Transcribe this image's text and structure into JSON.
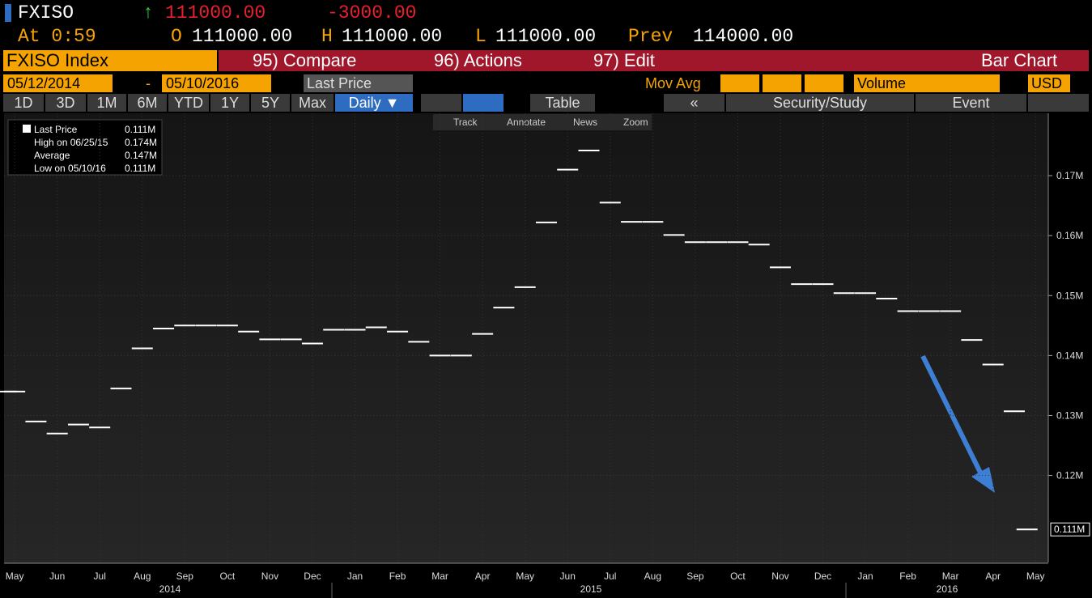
{
  "header": {
    "ticker": "FXISO",
    "arrow": "↑",
    "last": "111000.00",
    "change": "-3000.00",
    "time": "At 0:59",
    "open_label": "O",
    "open": "111000.00",
    "high_label": "H",
    "high": "111000.00",
    "low_label": "L",
    "low": "111000.00",
    "prev_label": "Prev",
    "prev": "114000.00"
  },
  "menu": {
    "security": "FXISO Index",
    "items": [
      "95) Compare",
      "96) Actions",
      "97) Edit"
    ],
    "view": "Bar Chart"
  },
  "settings": {
    "start": "05/12/2014",
    "dash": "-",
    "end": "05/10/2016",
    "field": "Last Price",
    "mov_avg": "Mov Avg",
    "volume": "Volume",
    "currency": "USD"
  },
  "periods": [
    "1D",
    "3D",
    "1M",
    "6M",
    "YTD",
    "1Y",
    "5Y",
    "Max"
  ],
  "frequency": "Daily ▼",
  "tools": {
    "table": "Table",
    "back": "«",
    "study": "Security/Study",
    "event": "Event"
  },
  "chart_tools": [
    "Track",
    "Annotate",
    "News",
    "Zoom"
  ],
  "legend": [
    {
      "label": "Last Price",
      "value": "0.111M"
    },
    {
      "label": "High on 06/25/15",
      "value": "0.174M"
    },
    {
      "label": "Average",
      "value": "0.147M"
    },
    {
      "label": "Low on 05/10/16",
      "value": "0.111M"
    }
  ],
  "chart_data": {
    "type": "bar",
    "color": "#ffffff",
    "grid": true,
    "x": [
      -0.2,
      0,
      0.5,
      1,
      1.5,
      2,
      2.5,
      3,
      3.5,
      4,
      4.5,
      5,
      5.5,
      6,
      6.5,
      7,
      7.5,
      8,
      8.5,
      9,
      9.5,
      10,
      10.5,
      11,
      11.5,
      12,
      12.5,
      13,
      13.5,
      14,
      14.5,
      15,
      15.5,
      16,
      16.5,
      17,
      17.5,
      18,
      18.5,
      19,
      19.5,
      20,
      20.5,
      21,
      21.5,
      22,
      22.5,
      23,
      23.5,
      23.8
    ],
    "values": [
      0.134,
      0.134,
      0.129,
      0.127,
      0.1285,
      0.128,
      0.1345,
      0.1412,
      0.1445,
      0.145,
      0.145,
      0.145,
      0.144,
      0.1427,
      0.1427,
      0.142,
      0.1443,
      0.1443,
      0.1447,
      0.144,
      0.1423,
      0.14,
      0.14,
      0.1436,
      0.148,
      0.1514,
      0.1622,
      0.171,
      0.1742,
      0.1655,
      0.1623,
      0.1623,
      0.1601,
      0.1589,
      0.1589,
      0.1589,
      0.1585,
      0.1547,
      0.1519,
      0.1519,
      0.1504,
      0.1504,
      0.1495,
      0.1474,
      0.1474,
      0.1474,
      0.1426,
      0.1385,
      0.1307,
      0.111
    ],
    "xlim": [
      -0.25,
      24.3
    ],
    "xticks": [
      {
        "value": 0,
        "label": "May"
      },
      {
        "value": 1,
        "label": "Jun"
      },
      {
        "value": 2,
        "label": "Jul"
      },
      {
        "value": 3,
        "label": "Aug"
      },
      {
        "value": 4,
        "label": "Sep"
      },
      {
        "value": 5,
        "label": "Oct"
      },
      {
        "value": 6,
        "label": "Nov"
      },
      {
        "value": 7,
        "label": "Dec"
      },
      {
        "value": 8,
        "label": "Jan"
      },
      {
        "value": 9,
        "label": "Feb"
      },
      {
        "value": 10,
        "label": "Mar"
      },
      {
        "value": 11,
        "label": "Apr"
      },
      {
        "value": 12,
        "label": "May"
      },
      {
        "value": 13,
        "label": "Jun"
      },
      {
        "value": 14,
        "label": "Jul"
      },
      {
        "value": 15,
        "label": "Aug"
      },
      {
        "value": 16,
        "label": "Sep"
      },
      {
        "value": 17,
        "label": "Oct"
      },
      {
        "value": 18,
        "label": "Nov"
      },
      {
        "value": 19,
        "label": "Dec"
      },
      {
        "value": 20,
        "label": "Jan"
      },
      {
        "value": 21,
        "label": "Feb"
      },
      {
        "value": 22,
        "label": "Mar"
      },
      {
        "value": 23,
        "label": "Apr"
      },
      {
        "value": 24,
        "label": "May"
      }
    ],
    "years": [
      "2014",
      "2015",
      "2016"
    ],
    "ylim": [
      0.1055,
      0.1804
    ],
    "yticks": [
      {
        "value": 0.12,
        "label": "0.12M"
      },
      {
        "value": 0.13,
        "label": "0.13M"
      },
      {
        "value": 0.14,
        "label": "0.14M"
      },
      {
        "value": 0.15,
        "label": "0.15M"
      },
      {
        "value": 0.16,
        "label": "0.16M"
      },
      {
        "value": 0.17,
        "label": "0.17M"
      }
    ]
  }
}
